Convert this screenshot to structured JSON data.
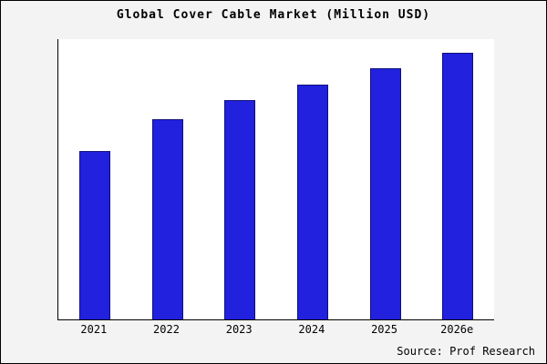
{
  "page": {
    "background_color": "#f3f3f3",
    "plot_background_color": "#ffffff",
    "border_color": "#000000"
  },
  "chart_data": {
    "type": "bar",
    "title": "Global Cover Cable Market (Million USD)",
    "categories": [
      "2021",
      "2022",
      "2023",
      "2024",
      "2025",
      "2026e"
    ],
    "values": [
      63,
      75,
      82,
      88,
      94,
      100
    ],
    "xlabel": "",
    "ylabel": "",
    "ylim": [
      0,
      105
    ],
    "grid": false,
    "legend": false,
    "bar_color": "#2121de",
    "bar_edge_color": "#10107a",
    "source": "Source: Prof Research"
  }
}
